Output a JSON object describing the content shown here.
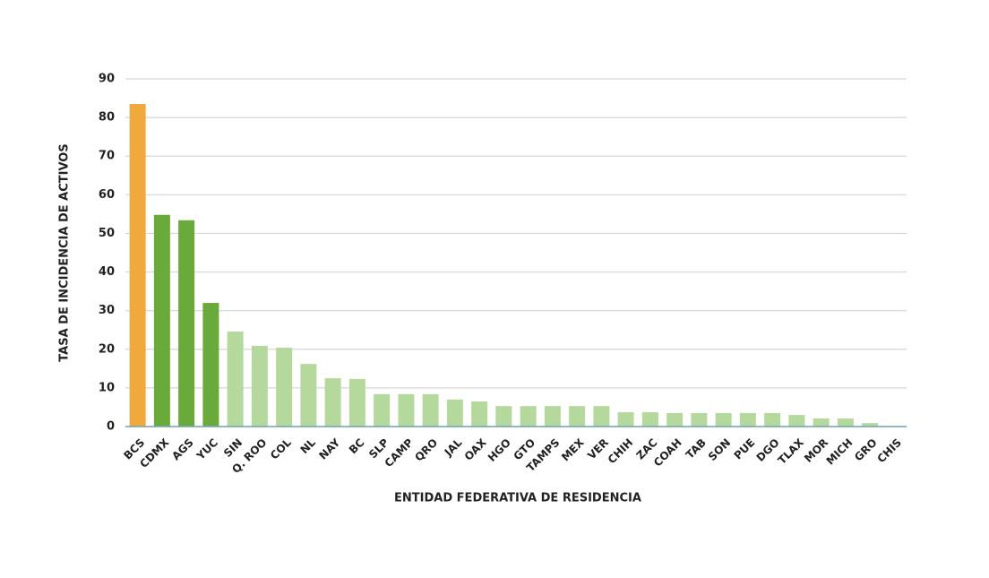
{
  "chart_data": {
    "type": "bar",
    "x_label": "ENTIDAD FEDERATIVA DE RESIDENCIA",
    "y_label": "TASA DE INCIDENCIA DE ACTIVOS",
    "categories": [
      "BCS",
      "CDMX",
      "AGS",
      "YUC",
      "SIN",
      "Q. ROO",
      "COL",
      "NL",
      "NAY",
      "BC",
      "SLP",
      "CAMP",
      "QRO",
      "JAL",
      "OAX",
      "HGO",
      "GTO",
      "TAMPS",
      "MEX",
      "VER",
      "CHIH",
      "ZAC",
      "COAH",
      "TAB",
      "SON",
      "PUE",
      "DGO",
      "TLAX",
      "MOR",
      "MICH",
      "GRO",
      "CHIS"
    ],
    "values": [
      83.5,
      54.8,
      53.4,
      32.0,
      24.6,
      20.9,
      20.4,
      16.2,
      12.5,
      12.3,
      8.4,
      8.4,
      8.4,
      7.0,
      6.5,
      5.3,
      5.3,
      5.3,
      5.3,
      5.3,
      3.7,
      3.7,
      3.5,
      3.5,
      3.5,
      3.5,
      3.5,
      3.0,
      2.1,
      2.1,
      0.9,
      0
    ],
    "colors": [
      "#f2a93b",
      "#6aaa3a",
      "#6aaa3a",
      "#6aaa3a",
      "#b5d99c",
      "#b5d99c",
      "#b5d99c",
      "#b5d99c",
      "#b5d99c",
      "#b5d99c",
      "#b5d99c",
      "#b5d99c",
      "#b5d99c",
      "#b5d99c",
      "#b5d99c",
      "#b5d99c",
      "#b5d99c",
      "#b5d99c",
      "#b5d99c",
      "#b5d99c",
      "#b5d99c",
      "#b5d99c",
      "#b5d99c",
      "#b5d99c",
      "#b5d99c",
      "#b5d99c",
      "#b5d99c",
      "#b5d99c",
      "#b5d99c",
      "#b5d99c",
      "#b5d99c",
      "#b5d99c"
    ],
    "ylim": [
      0,
      90
    ],
    "yticks": [
      0,
      10,
      20,
      30,
      40,
      50,
      60,
      70,
      80,
      90
    ],
    "grid": true
  }
}
